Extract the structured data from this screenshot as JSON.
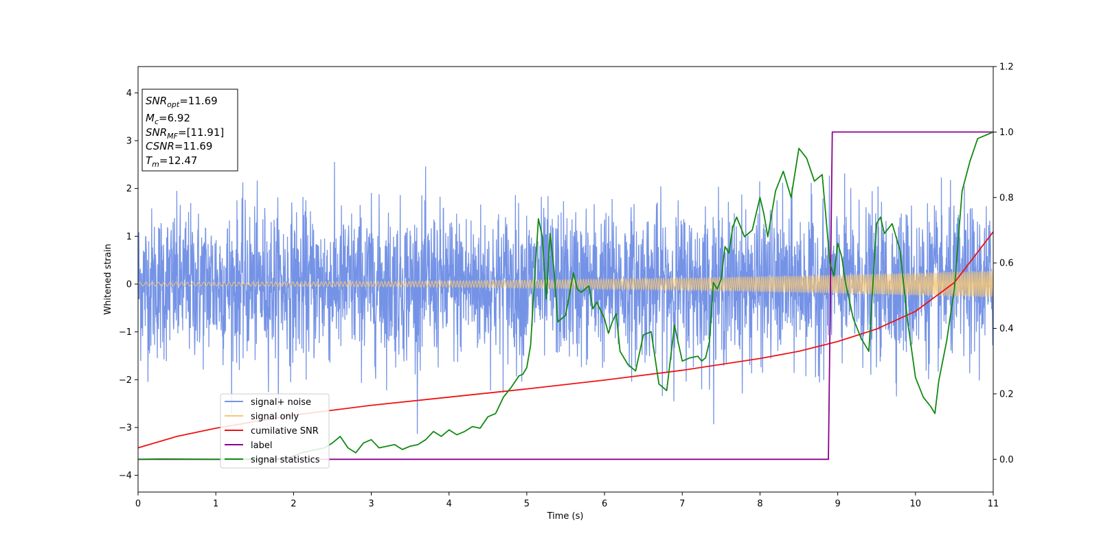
{
  "chart_data": {
    "type": "line",
    "xlabel": "Time (s)",
    "ylabel": "Whitened strain",
    "xlim": [
      0,
      11
    ],
    "ylim_left": [
      -4.35,
      4.55
    ],
    "ylim_right": [
      -0.1,
      1.2
    ],
    "x_ticks": [
      "0",
      "1",
      "2",
      "3",
      "4",
      "5",
      "6",
      "7",
      "8",
      "9",
      "10",
      "11"
    ],
    "y_left_ticks": [
      "−4",
      "−3",
      "−2",
      "−1",
      "0",
      "1",
      "2",
      "3",
      "4"
    ],
    "y_right_ticks": [
      "0.0",
      "0.2",
      "0.4",
      "0.6",
      "0.8",
      "1.0",
      "1.2"
    ],
    "grid": false,
    "legend_position": "lower-left",
    "annotation": {
      "lines": [
        {
          "base": "SNR",
          "sub": "opt",
          "value": "=11.69"
        },
        {
          "base": "M",
          "sub": "c",
          "value": "=6.92"
        },
        {
          "base": "SNR",
          "sub": "MF",
          "value": "=[11.91]"
        },
        {
          "base": "CSNR",
          "sub": "",
          "value": "=11.69"
        },
        {
          "base": "T",
          "sub": "m",
          "value": "=12.47"
        }
      ]
    },
    "series": [
      {
        "name": "signal+ noise",
        "color": "#7593e6",
        "axis": "left",
        "kind": "noise",
        "std": 0.78,
        "min": -3.95,
        "max": 3.7
      },
      {
        "name": "signal only",
        "color": "#f5c777",
        "axis": "left",
        "kind": "chirp",
        "amplitude_start": 0.04,
        "amplitude_end": 0.28
      },
      {
        "name": "cumilative SNR",
        "color": "#ee1111",
        "axis": "right",
        "x": [
          0,
          0.5,
          1,
          2,
          3,
          4,
          5,
          6,
          7,
          8,
          8.5,
          9,
          9.5,
          10,
          10.5,
          11
        ],
        "y": [
          0.035,
          0.07,
          0.095,
          0.135,
          0.165,
          0.19,
          0.215,
          0.242,
          0.272,
          0.308,
          0.33,
          0.36,
          0.398,
          0.452,
          0.54,
          0.695
        ]
      },
      {
        "name": "label",
        "color": "#8b008b",
        "axis": "right",
        "x": [
          0,
          8.88,
          8.93,
          11
        ],
        "y": [
          0.0,
          0.0,
          1.0,
          1.0
        ]
      },
      {
        "name": "signal statistics",
        "color": "#118811",
        "axis": "right",
        "x": [
          0,
          0.3,
          1.0,
          1.6,
          1.9,
          2.0,
          2.1,
          2.2,
          2.3,
          2.4,
          2.5,
          2.6,
          2.7,
          2.8,
          2.9,
          3.0,
          3.1,
          3.2,
          3.3,
          3.4,
          3.5,
          3.6,
          3.7,
          3.8,
          3.9,
          4.0,
          4.1,
          4.2,
          4.3,
          4.4,
          4.5,
          4.6,
          4.7,
          4.8,
          4.9,
          4.95,
          5.0,
          5.05,
          5.1,
          5.15,
          5.2,
          5.25,
          5.3,
          5.35,
          5.4,
          5.5,
          5.6,
          5.65,
          5.7,
          5.8,
          5.85,
          5.9,
          6.0,
          6.05,
          6.1,
          6.15,
          6.2,
          6.3,
          6.4,
          6.5,
          6.6,
          6.7,
          6.8,
          6.9,
          7.0,
          7.1,
          7.2,
          7.25,
          7.3,
          7.35,
          7.4,
          7.45,
          7.5,
          7.55,
          7.6,
          7.65,
          7.7,
          7.8,
          7.9,
          8.0,
          8.05,
          8.1,
          8.2,
          8.3,
          8.4,
          8.5,
          8.6,
          8.7,
          8.8,
          8.9,
          8.95,
          9.0,
          9.05,
          9.1,
          9.2,
          9.3,
          9.4,
          9.5,
          9.55,
          9.6,
          9.7,
          9.8,
          9.9,
          10.0,
          10.1,
          10.2,
          10.25,
          10.3,
          10.4,
          10.5,
          10.6,
          10.7,
          10.8,
          10.9,
          11.0
        ],
        "y": [
          0.0,
          0.001,
          0.0,
          0.001,
          0.003,
          0.01,
          0.02,
          0.025,
          0.03,
          0.035,
          0.05,
          0.07,
          0.035,
          0.02,
          0.05,
          0.06,
          0.035,
          0.04,
          0.045,
          0.03,
          0.04,
          0.045,
          0.06,
          0.085,
          0.07,
          0.09,
          0.075,
          0.085,
          0.1,
          0.095,
          0.13,
          0.14,
          0.19,
          0.22,
          0.255,
          0.26,
          0.28,
          0.35,
          0.55,
          0.735,
          0.68,
          0.49,
          0.69,
          0.58,
          0.42,
          0.44,
          0.57,
          0.52,
          0.51,
          0.53,
          0.46,
          0.48,
          0.43,
          0.385,
          0.42,
          0.445,
          0.33,
          0.29,
          0.27,
          0.38,
          0.39,
          0.23,
          0.21,
          0.41,
          0.3,
          0.31,
          0.315,
          0.3,
          0.31,
          0.36,
          0.54,
          0.52,
          0.55,
          0.65,
          0.63,
          0.71,
          0.74,
          0.68,
          0.7,
          0.8,
          0.75,
          0.68,
          0.82,
          0.88,
          0.8,
          0.95,
          0.92,
          0.85,
          0.87,
          0.6,
          0.56,
          0.66,
          0.62,
          0.54,
          0.43,
          0.37,
          0.33,
          0.72,
          0.74,
          0.69,
          0.72,
          0.64,
          0.42,
          0.25,
          0.19,
          0.16,
          0.14,
          0.24,
          0.36,
          0.52,
          0.82,
          0.91,
          0.98,
          0.99,
          1.0
        ]
      }
    ]
  }
}
